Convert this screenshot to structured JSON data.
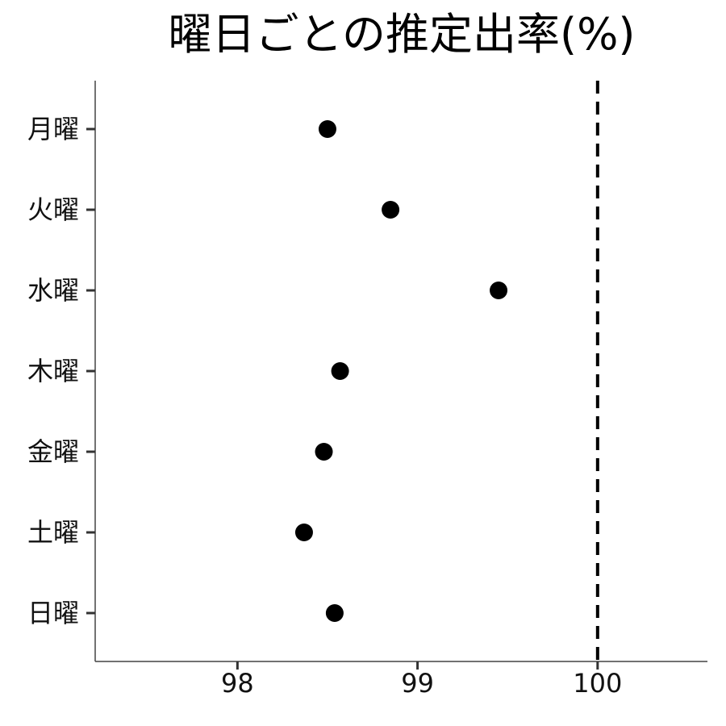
{
  "chart_data": {
    "type": "scatter",
    "title": "曜日ごとの推定出率(%)",
    "xlabel": "",
    "ylabel": "",
    "categories": [
      "月曜",
      "火曜",
      "水曜",
      "木曜",
      "金曜",
      "土曜",
      "日曜"
    ],
    "values": [
      98.5,
      98.85,
      99.45,
      98.57,
      98.48,
      98.37,
      98.54
    ],
    "xlim": [
      97.21,
      100.61
    ],
    "xticks": [
      98,
      99,
      100
    ],
    "xtick_labels": [
      "98",
      "99",
      "100"
    ],
    "reference_line": {
      "x": 100,
      "style": "dashed"
    },
    "grid": false,
    "legend": "none",
    "colors": {
      "point": "#000000",
      "axis": "#444444",
      "reference_line": "#000000"
    }
  }
}
